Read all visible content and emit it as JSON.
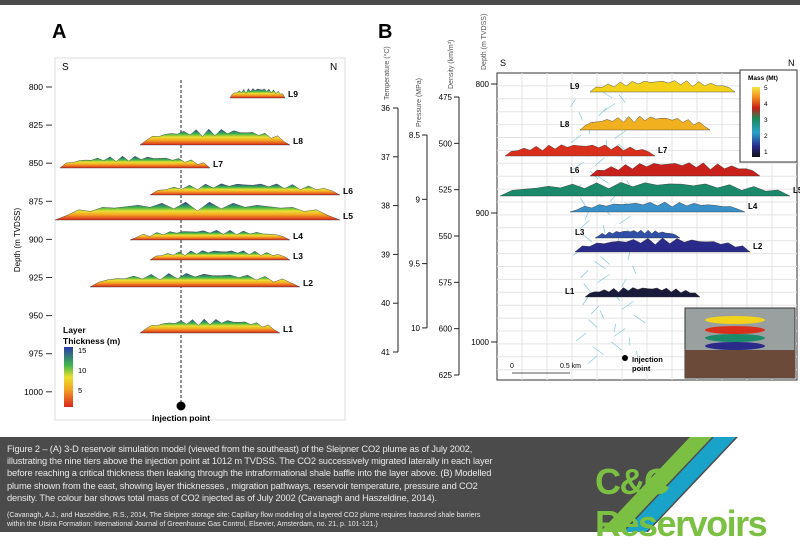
{
  "panel_a": {
    "letter": "A",
    "south": "S",
    "north": "N",
    "ylabel": "Depth (m TVDSS)",
    "ticks": [
      "800",
      "825",
      "850",
      "875",
      "900",
      "925",
      "950",
      "975",
      "1000"
    ],
    "layers": [
      "L9",
      "L8",
      "L7",
      "L6",
      "L5",
      "L4",
      "L3",
      "L2",
      "L1"
    ],
    "legend_title_1": "Layer",
    "legend_title_2": "Thickness (m)",
    "legend_ticks": [
      "15",
      "10",
      "5"
    ],
    "injection_label": "Injection point"
  },
  "panel_b": {
    "letter": "B",
    "south": "S",
    "north": "N",
    "temperature": {
      "label": "Temperature (°C)",
      "ticks": [
        "36",
        "37",
        "38",
        "39",
        "40",
        "41"
      ]
    },
    "pressure": {
      "label": "Pressure (MPa)",
      "ticks": [
        "8.5",
        "9",
        "9.5",
        "10"
      ]
    },
    "density": {
      "label": "Density (km/m³)",
      "ticks": [
        "475",
        "500",
        "525",
        "550",
        "575",
        "600",
        "625"
      ]
    },
    "depth": {
      "label": "Depth (m TVDSS)",
      "ticks": [
        "800",
        "900",
        "1000"
      ]
    },
    "layers": [
      "L9",
      "L8",
      "L7",
      "L6",
      "L5",
      "L4",
      "L3",
      "L2",
      "L1"
    ],
    "mass_legend": {
      "title": "Mass (Mt)",
      "ticks": [
        "5",
        "4",
        "3",
        "2",
        "1"
      ]
    },
    "scale": {
      "zero": "0",
      "label": "0.5 km"
    },
    "injection_label_1": "Injection",
    "injection_label_2": "point"
  },
  "footer": {
    "caption": "Figure 2 – (A) 3-D reservoir simulation model (viewed from the southeast) of the Sleipner CO2 plume as of July 2002, illustrating the nine tiers above the injection point at 1012 m TVDSS. The CO2 successively migrated laterally in each layer before reaching a critical thickness then leaking through the intraformational shale baffle into the layer above. (B) Modelled plume shown from the east, showing layer thicknesses , migration pathways, reservoir temperature, pressure and CO2 density. The colour bar shows total mass of CO2 injected as of July 2002 (Cavanagh and Haszeldine, 2014).",
    "reference": "(Cavanagh, A.J., and Haszeldine, R.S., 2014, The Sleipner storage site: Capillary flow modeling of a layered CO2 plume requires fractured shale barriers within the Utsira Formation: International Journal of Greenhouse Gas Control, Elsevier, Amsterdam, no. 21, p. 101-121.)",
    "logo": "C&C Reservoirs"
  },
  "colors": {
    "logo_green": "#7bc043",
    "stripe_blue": "#1aa3c8",
    "footer_bg": "#4b4b4b"
  }
}
